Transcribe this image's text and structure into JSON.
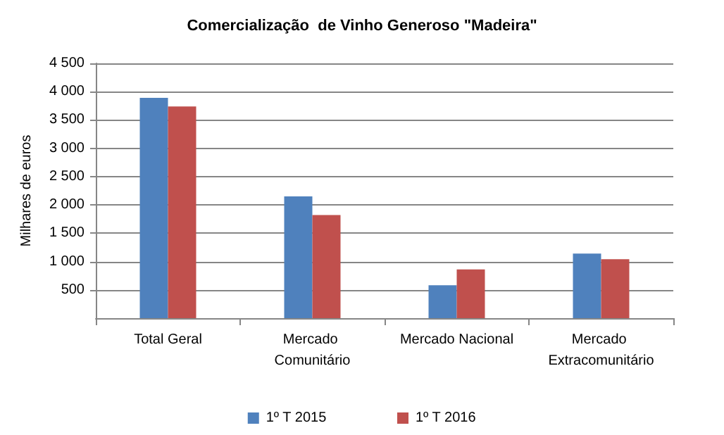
{
  "chart_data": {
    "type": "bar",
    "title": "Comercialização  de Vinho Generoso \"Madeira\"",
    "ylabel": "Milhares de euros",
    "categories": [
      "Total Geral",
      "Mercado Comunitário",
      "Mercado Nacional",
      "Mercado Extracomunitário"
    ],
    "series": [
      {
        "name": "1º T 2015",
        "color": "#4f81bd",
        "values": [
          3890,
          2150,
          580,
          1140
        ]
      },
      {
        "name": "1º T 2016",
        "color": "#c0504d",
        "values": [
          3740,
          1820,
          860,
          1040
        ]
      }
    ],
    "ylim": [
      0,
      4500
    ],
    "yticks": [
      {
        "value": 500,
        "label": "500"
      },
      {
        "value": 1000,
        "label": "1 000"
      },
      {
        "value": 1500,
        "label": "1 500"
      },
      {
        "value": 2000,
        "label": "2 000"
      },
      {
        "value": 2500,
        "label": "2 500"
      },
      {
        "value": 3000,
        "label": "3 000"
      },
      {
        "value": 3500,
        "label": "3 500"
      },
      {
        "value": 4000,
        "label": "4 000"
      },
      {
        "value": 4500,
        "label": "4 500"
      }
    ],
    "grid": "y",
    "legend": "bottom"
  }
}
